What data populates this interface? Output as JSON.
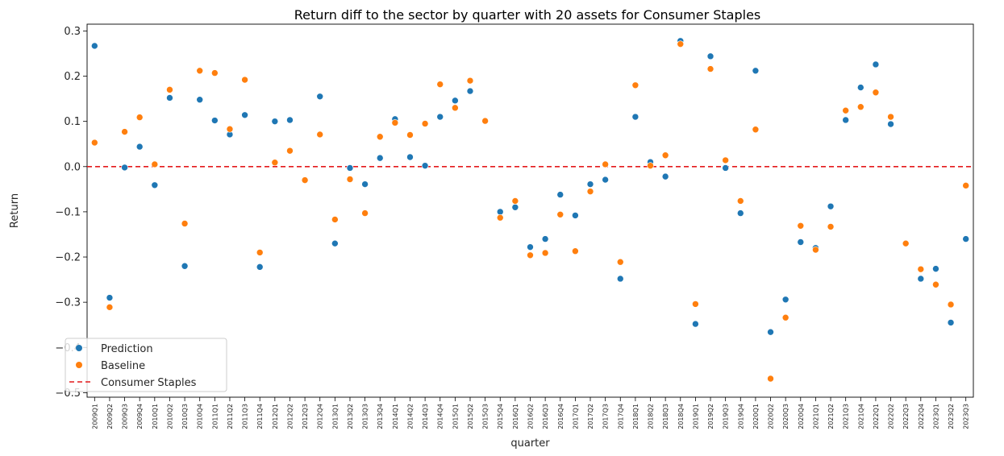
{
  "chart_data": {
    "type": "scatter",
    "title": "Return diff to the sector by quarter with 20 assets for Consumer Staples",
    "xlabel": "quarter",
    "ylabel": "Return",
    "ylim": [
      -0.51,
      0.315
    ],
    "yticks": [
      -0.5,
      -0.4,
      -0.3,
      -0.2,
      -0.1,
      0.0,
      0.1,
      0.2,
      0.3
    ],
    "ytick_labels": [
      "−0.5",
      "−0.4",
      "−0.3",
      "−0.2",
      "−0.1",
      "0.0",
      "0.1",
      "0.2",
      "0.3"
    ],
    "grid": false,
    "legend_position": "lower-left",
    "categories": [
      "2009Q1",
      "2009Q2",
      "2009Q3",
      "2009Q4",
      "2010Q1",
      "2010Q2",
      "2010Q3",
      "2010Q4",
      "2011Q1",
      "2011Q2",
      "2011Q3",
      "2011Q4",
      "2012Q1",
      "2012Q2",
      "2012Q3",
      "2012Q4",
      "2013Q1",
      "2013Q2",
      "2013Q3",
      "2013Q4",
      "2014Q1",
      "2014Q2",
      "2014Q3",
      "2014Q4",
      "2015Q1",
      "2015Q2",
      "2015Q3",
      "2015Q4",
      "2016Q1",
      "2016Q2",
      "2016Q3",
      "2016Q4",
      "2017Q1",
      "2017Q2",
      "2017Q3",
      "2017Q4",
      "2018Q1",
      "2018Q2",
      "2018Q3",
      "2018Q4",
      "2019Q1",
      "2019Q2",
      "2019Q3",
      "2019Q4",
      "2020Q1",
      "2020Q2",
      "2020Q3",
      "2020Q4",
      "2021Q1",
      "2021Q2",
      "2021Q3",
      "2021Q4",
      "2022Q1",
      "2022Q2",
      "2022Q3",
      "2022Q4",
      "2023Q1",
      "2023Q2",
      "2023Q3"
    ],
    "series": [
      {
        "name": "Prediction",
        "color": "#1f77b4",
        "values": [
          0.267,
          -0.29,
          -0.002,
          0.044,
          -0.041,
          0.152,
          -0.22,
          0.148,
          0.102,
          0.071,
          0.114,
          -0.222,
          0.1,
          0.103,
          -0.03,
          0.155,
          -0.17,
          -0.003,
          -0.039,
          0.019,
          0.105,
          0.021,
          0.002,
          0.11,
          0.146,
          0.167,
          0.101,
          -0.1,
          -0.09,
          -0.178,
          -0.16,
          -0.062,
          -0.108,
          -0.039,
          -0.029,
          -0.248,
          0.11,
          0.01,
          -0.022,
          0.278,
          -0.348,
          0.244,
          -0.003,
          -0.103,
          0.212,
          -0.366,
          -0.294,
          -0.167,
          -0.18,
          -0.088,
          0.103,
          0.175,
          0.226,
          0.094,
          -0.17,
          -0.248,
          -0.226,
          -0.345,
          -0.16
        ]
      },
      {
        "name": "Baseline",
        "color": "#ff7f0e",
        "values": [
          0.053,
          -0.311,
          0.077,
          0.109,
          0.005,
          0.17,
          -0.126,
          0.212,
          0.207,
          0.083,
          0.192,
          -0.19,
          0.009,
          0.035,
          -0.03,
          0.071,
          -0.117,
          -0.028,
          -0.103,
          0.066,
          0.097,
          0.07,
          0.095,
          0.182,
          0.13,
          0.19,
          0.101,
          -0.113,
          -0.076,
          -0.196,
          -0.191,
          -0.106,
          -0.187,
          -0.055,
          0.005,
          -0.211,
          0.18,
          0.002,
          0.025,
          0.271,
          -0.304,
          0.216,
          0.014,
          -0.076,
          0.082,
          -0.469,
          -0.334,
          -0.131,
          -0.184,
          -0.133,
          0.124,
          0.132,
          0.164,
          0.11,
          -0.17,
          -0.227,
          -0.261,
          -0.305,
          -0.042
        ]
      }
    ],
    "reference_line": {
      "name": "Consumer Staples",
      "y": 0.0,
      "color": "#e41a1c",
      "style": "dashed"
    }
  }
}
